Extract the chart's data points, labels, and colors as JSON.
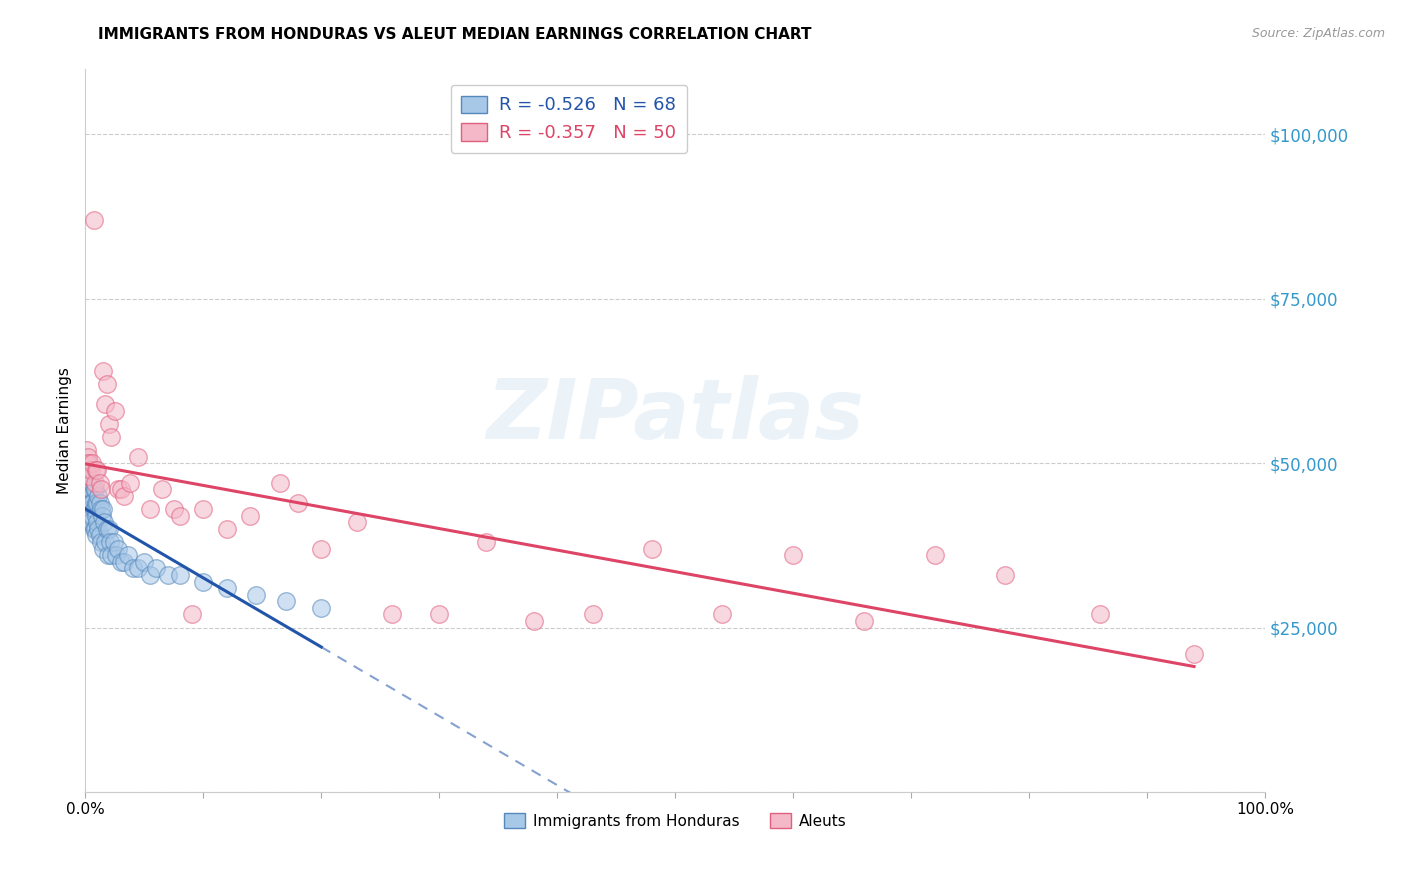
{
  "title": "IMMIGRANTS FROM HONDURAS VS ALEUT MEDIAN EARNINGS CORRELATION CHART",
  "source": "Source: ZipAtlas.com",
  "ylabel": "Median Earnings",
  "legend_label_blue": "Immigrants from Honduras",
  "legend_label_pink": "Aleuts",
  "R_blue": -0.526,
  "N_blue": 68,
  "R_pink": -0.357,
  "N_pink": 50,
  "blue_scatter_color": "#a8c8e8",
  "blue_scatter_edge": "#5588bb",
  "pink_scatter_color": "#f4b8c8",
  "pink_scatter_edge": "#e06080",
  "blue_line_color": "#2255aa",
  "pink_line_color": "#dd4466",
  "background_color": "#ffffff",
  "watermark_text": "ZIPatlas",
  "xlim": [
    0,
    1.0
  ],
  "ylim": [
    0,
    110000
  ],
  "yticks": [
    0,
    25000,
    50000,
    75000,
    100000
  ],
  "ytick_labels": [
    "",
    "$25,000",
    "$50,000",
    "$75,000",
    "$100,000"
  ],
  "xticks": [
    0.0,
    0.1,
    0.2,
    0.3,
    0.4,
    0.5,
    0.6,
    0.7,
    0.8,
    0.9,
    1.0
  ],
  "xtick_labels": [
    "0.0%",
    "",
    "",
    "",
    "",
    "",
    "",
    "",
    "",
    "",
    "100.0%"
  ],
  "blue_x": [
    0.001,
    0.001,
    0.001,
    0.002,
    0.002,
    0.002,
    0.002,
    0.003,
    0.003,
    0.003,
    0.003,
    0.003,
    0.004,
    0.004,
    0.004,
    0.004,
    0.005,
    0.005,
    0.005,
    0.005,
    0.006,
    0.006,
    0.006,
    0.007,
    0.007,
    0.007,
    0.008,
    0.008,
    0.008,
    0.009,
    0.009,
    0.009,
    0.01,
    0.01,
    0.011,
    0.011,
    0.012,
    0.012,
    0.013,
    0.013,
    0.014,
    0.015,
    0.015,
    0.016,
    0.017,
    0.018,
    0.019,
    0.02,
    0.021,
    0.022,
    0.024,
    0.026,
    0.028,
    0.03,
    0.033,
    0.036,
    0.04,
    0.045,
    0.05,
    0.055,
    0.06,
    0.07,
    0.08,
    0.1,
    0.12,
    0.145,
    0.17,
    0.2
  ],
  "blue_y": [
    47000,
    48000,
    46000,
    50000,
    48000,
    46000,
    45000,
    47000,
    46000,
    44000,
    43000,
    42000,
    46000,
    45000,
    43000,
    41000,
    46000,
    44000,
    43000,
    41000,
    47000,
    44000,
    42000,
    46000,
    43000,
    40000,
    46000,
    43000,
    40000,
    44000,
    42000,
    39000,
    44000,
    41000,
    45000,
    40000,
    44000,
    39000,
    43000,
    38000,
    42000,
    43000,
    37000,
    41000,
    38000,
    40000,
    36000,
    40000,
    38000,
    36000,
    38000,
    36000,
    37000,
    35000,
    35000,
    36000,
    34000,
    34000,
    35000,
    33000,
    34000,
    33000,
    33000,
    32000,
    31000,
    30000,
    29000,
    28000
  ],
  "pink_x": [
    0.001,
    0.001,
    0.002,
    0.002,
    0.003,
    0.003,
    0.005,
    0.006,
    0.007,
    0.008,
    0.009,
    0.01,
    0.012,
    0.013,
    0.015,
    0.017,
    0.018,
    0.02,
    0.022,
    0.025,
    0.028,
    0.03,
    0.033,
    0.038,
    0.045,
    0.055,
    0.065,
    0.075,
    0.08,
    0.09,
    0.1,
    0.12,
    0.14,
    0.165,
    0.18,
    0.2,
    0.23,
    0.26,
    0.3,
    0.34,
    0.38,
    0.43,
    0.48,
    0.54,
    0.6,
    0.66,
    0.72,
    0.78,
    0.86,
    0.94
  ],
  "pink_y": [
    52000,
    50000,
    51000,
    48000,
    50000,
    48000,
    49000,
    50000,
    87000,
    47000,
    49000,
    49000,
    47000,
    46000,
    64000,
    59000,
    62000,
    56000,
    54000,
    58000,
    46000,
    46000,
    45000,
    47000,
    51000,
    43000,
    46000,
    43000,
    42000,
    27000,
    43000,
    40000,
    42000,
    47000,
    44000,
    37000,
    41000,
    27000,
    27000,
    38000,
    26000,
    27000,
    37000,
    27000,
    36000,
    26000,
    36000,
    33000,
    27000,
    21000
  ]
}
